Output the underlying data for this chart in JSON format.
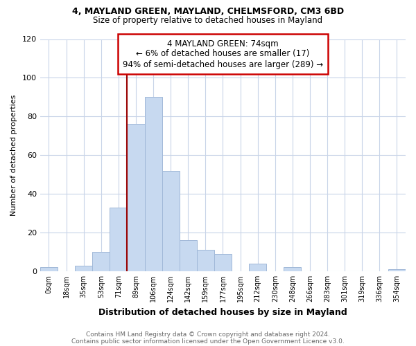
{
  "title": "4, MAYLAND GREEN, MAYLAND, CHELMSFORD, CM3 6BD",
  "subtitle": "Size of property relative to detached houses in Mayland",
  "xlabel": "Distribution of detached houses by size in Mayland",
  "ylabel": "Number of detached properties",
  "bar_color": "#c7d9f0",
  "bar_edge_color": "#a0b8d8",
  "categories": [
    "0sqm",
    "18sqm",
    "35sqm",
    "53sqm",
    "71sqm",
    "89sqm",
    "106sqm",
    "124sqm",
    "142sqm",
    "159sqm",
    "177sqm",
    "195sqm",
    "212sqm",
    "230sqm",
    "248sqm",
    "266sqm",
    "283sqm",
    "301sqm",
    "319sqm",
    "336sqm",
    "354sqm"
  ],
  "values": [
    2,
    0,
    3,
    10,
    33,
    76,
    90,
    52,
    16,
    11,
    9,
    0,
    4,
    0,
    2,
    0,
    0,
    0,
    0,
    0,
    1
  ],
  "annotation_title": "4 MAYLAND GREEN: 74sqm",
  "annotation_line1": "← 6% of detached houses are smaller (17)",
  "annotation_line2": "94% of semi-detached houses are larger (289) →",
  "footer1": "Contains HM Land Registry data © Crown copyright and database right 2024.",
  "footer2": "Contains public sector information licensed under the Open Government Licence v3.0.",
  "vline_color": "#990000",
  "annotation_box_color": "#ffffff",
  "annotation_box_edge_color": "#cc0000",
  "ylim": [
    0,
    120
  ],
  "background_color": "#ffffff",
  "grid_color": "#c8d4e8"
}
